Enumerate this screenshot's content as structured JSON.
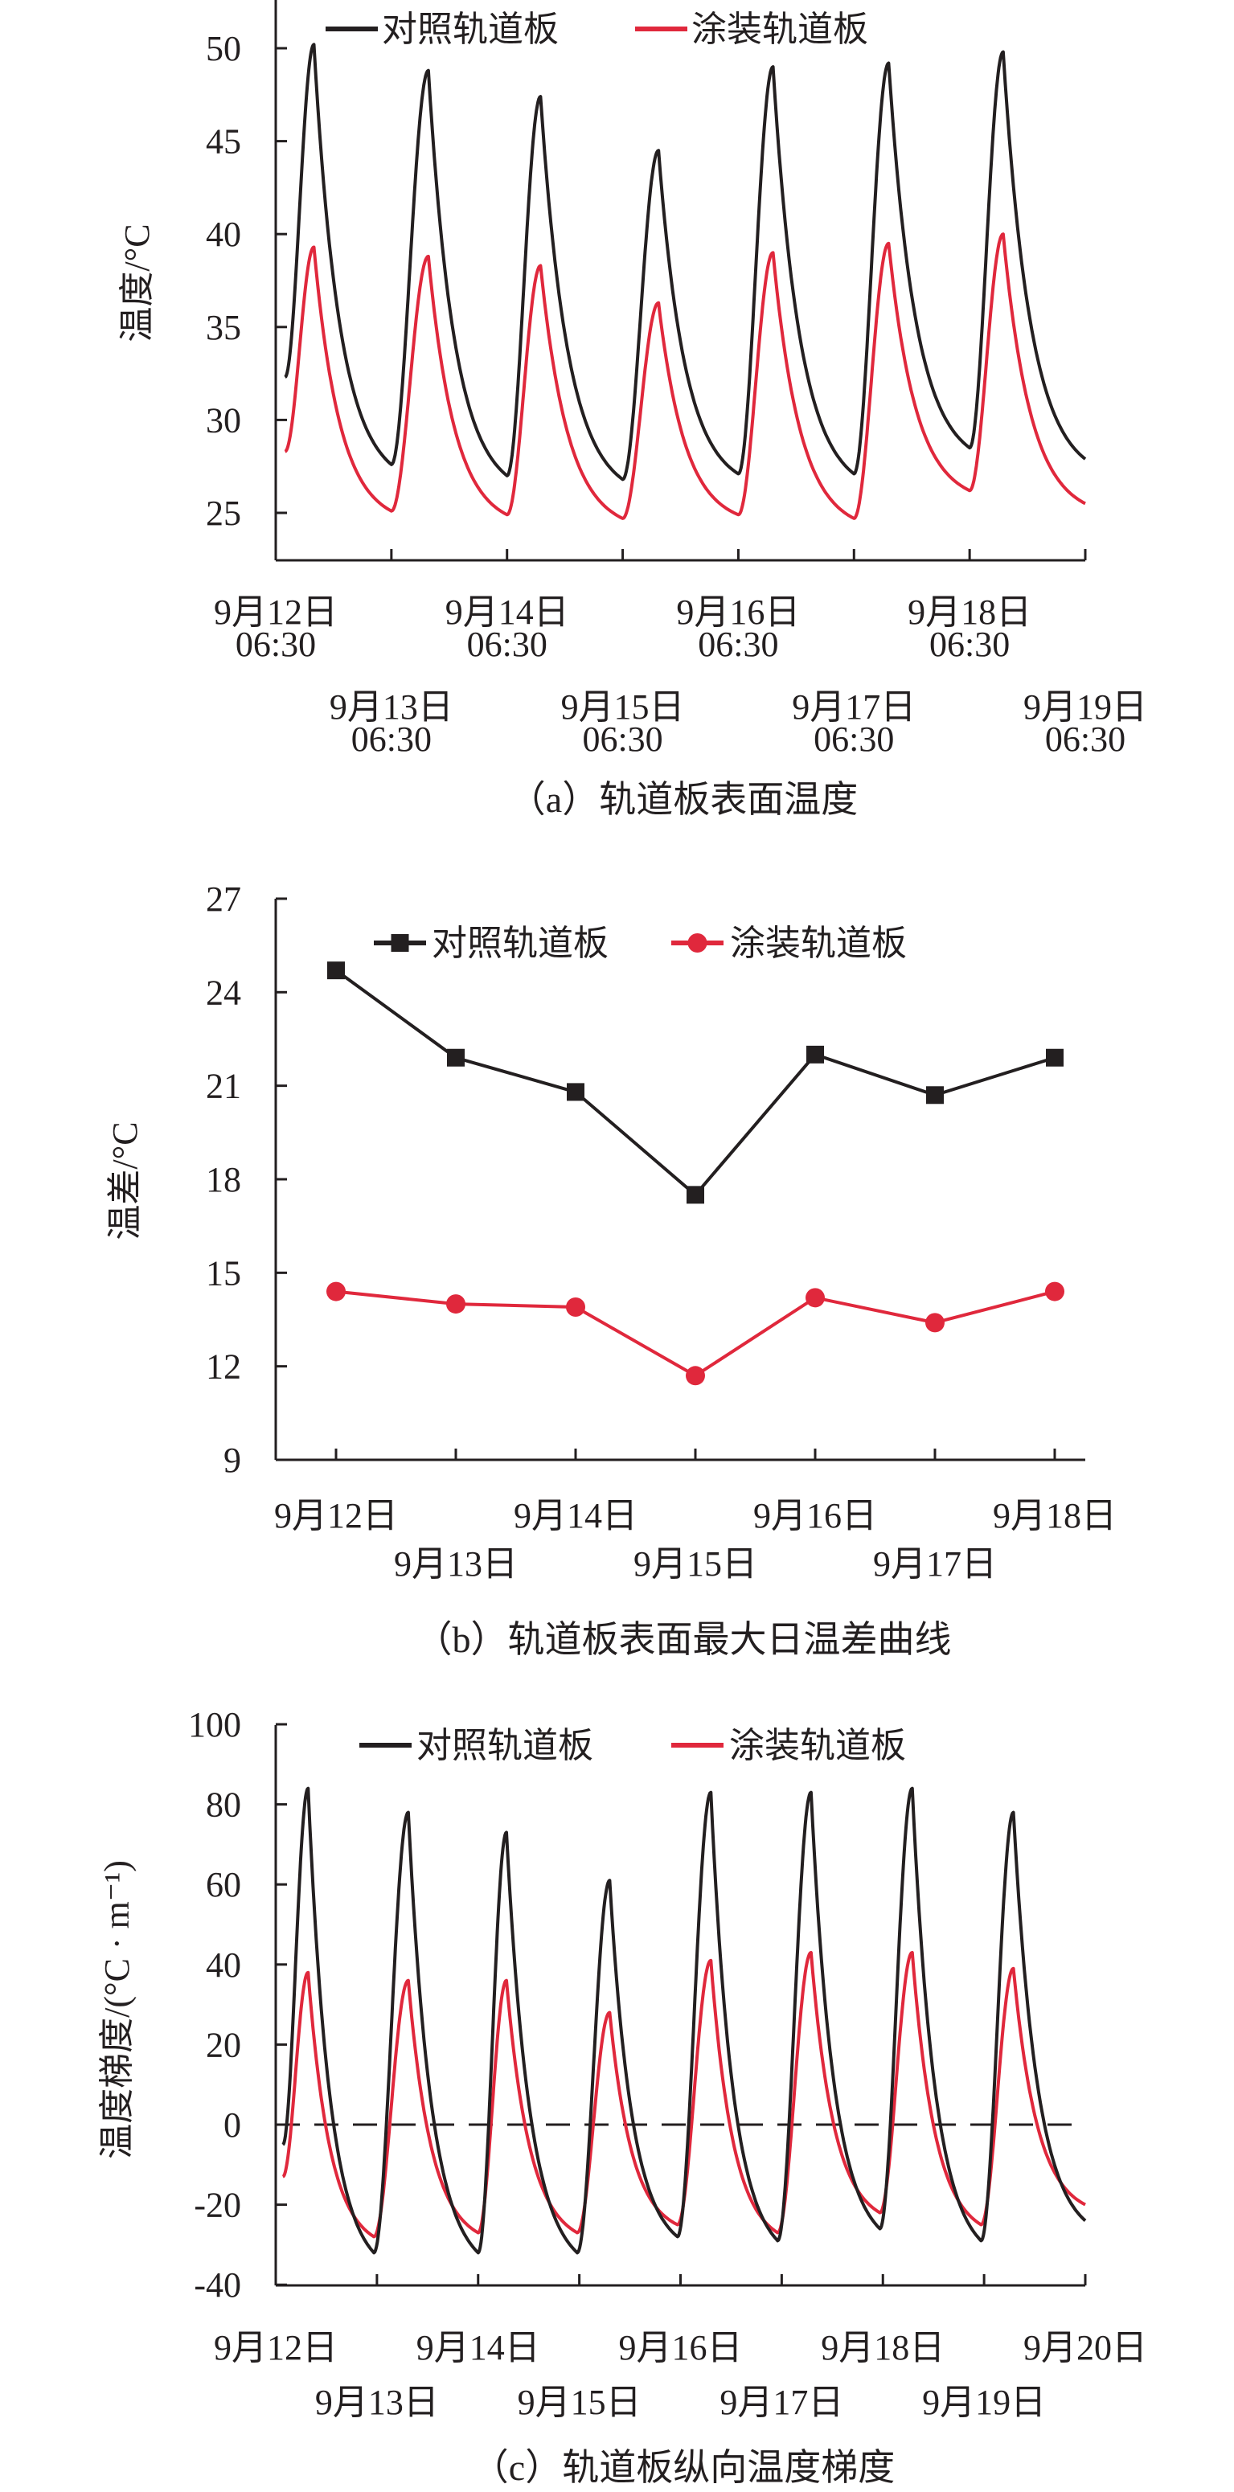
{
  "colors": {
    "control": "#231f20",
    "coated": "#e0283c"
  },
  "legend": {
    "control": "对照轨道板",
    "coated": "涂装轨道板"
  },
  "chart_data": [
    {
      "id": "a",
      "type": "line",
      "title": "（a）轨道板表面温度",
      "xlabel": "",
      "ylabel": "温度/°C",
      "x_unit": "days since 9月12日 06:30",
      "xlim": [
        0,
        7
      ],
      "ylim": [
        22.5,
        52
      ],
      "yticks": [
        25,
        30,
        35,
        40,
        45,
        50
      ],
      "xticks": [
        {
          "date": "9月12日",
          "time": "06:30"
        },
        {
          "date": "9月13日",
          "time": "06:30"
        },
        {
          "date": "9月14日",
          "time": "06:30"
        },
        {
          "date": "9月15日",
          "time": "06:30"
        },
        {
          "date": "9月16日",
          "time": "06:30"
        },
        {
          "date": "9月17日",
          "time": "06:30"
        },
        {
          "date": "9月18日",
          "time": "06:30"
        },
        {
          "date": "9月19日",
          "time": "06:30"
        }
      ],
      "legend_position": "top",
      "series": [
        {
          "name": "对照轨道板",
          "key": "control",
          "points": [
            [
              0.08,
              32.3
            ],
            [
              0.33,
              50.2
            ],
            [
              1.0,
              27.6
            ],
            [
              1.32,
              48.8
            ],
            [
              2.0,
              27.0
            ],
            [
              2.29,
              47.4
            ],
            [
              3.0,
              26.8
            ],
            [
              3.31,
              44.5
            ],
            [
              4.0,
              27.1
            ],
            [
              4.3,
              49.0
            ],
            [
              5.0,
              27.1
            ],
            [
              5.3,
              49.2
            ],
            [
              6.0,
              28.5
            ],
            [
              6.29,
              49.8
            ],
            [
              7.0,
              27.9
            ]
          ]
        },
        {
          "name": "涂装轨道板",
          "key": "coated",
          "points": [
            [
              0.08,
              28.3
            ],
            [
              0.33,
              39.3
            ],
            [
              1.0,
              25.1
            ],
            [
              1.32,
              38.8
            ],
            [
              2.0,
              24.9
            ],
            [
              2.29,
              38.3
            ],
            [
              3.0,
              24.7
            ],
            [
              3.31,
              36.3
            ],
            [
              4.0,
              24.9
            ],
            [
              4.3,
              39.0
            ],
            [
              5.0,
              24.7
            ],
            [
              5.3,
              39.5
            ],
            [
              6.0,
              26.2
            ],
            [
              6.29,
              40.0
            ],
            [
              7.0,
              25.5
            ]
          ]
        }
      ]
    },
    {
      "id": "b",
      "type": "line",
      "title": "（b）轨道板表面最大日温差曲线",
      "xlabel": "",
      "ylabel": "温差/°C",
      "ylim": [
        9,
        27
      ],
      "yticks": [
        9,
        12,
        15,
        18,
        21,
        24,
        27
      ],
      "categories": [
        "9月12日",
        "9月13日",
        "9月14日",
        "9月15日",
        "9月16日",
        "9月17日",
        "9月18日"
      ],
      "legend_position": "top",
      "series": [
        {
          "name": "对照轨道板",
          "key": "control",
          "marker": "square",
          "values": [
            24.7,
            21.9,
            20.8,
            17.5,
            22.0,
            20.7,
            21.9
          ]
        },
        {
          "name": "涂装轨道板",
          "key": "coated",
          "marker": "circle",
          "values": [
            14.4,
            14.0,
            13.9,
            11.7,
            14.2,
            13.4,
            14.4
          ]
        }
      ]
    },
    {
      "id": "c",
      "type": "line",
      "title": "（c）轨道板纵向温度梯度",
      "xlabel": "",
      "ylabel": "温度梯度/(°C · m⁻¹)",
      "x_unit": "days since 9月12日",
      "xlim": [
        0,
        8
      ],
      "ylim": [
        -40,
        100
      ],
      "yticks": [
        -40,
        -20,
        0,
        20,
        40,
        60,
        80,
        100
      ],
      "xticks": [
        "9月12日",
        "9月13日",
        "9月14日",
        "9月15日",
        "9月16日",
        "9月17日",
        "9月18日",
        "9月19日",
        "9月20日"
      ],
      "reference_line": 0,
      "legend_position": "top",
      "series": [
        {
          "name": "对照轨道板",
          "key": "control",
          "points": [
            [
              0.07,
              -5
            ],
            [
              0.32,
              84
            ],
            [
              0.97,
              -32
            ],
            [
              1.31,
              78
            ],
            [
              2.0,
              -32
            ],
            [
              2.28,
              73
            ],
            [
              2.98,
              -32
            ],
            [
              3.3,
              61
            ],
            [
              3.97,
              -28
            ],
            [
              4.3,
              83
            ],
            [
              4.96,
              -29
            ],
            [
              5.29,
              83
            ],
            [
              5.97,
              -26
            ],
            [
              6.29,
              84
            ],
            [
              6.97,
              -29
            ],
            [
              7.29,
              78
            ],
            [
              8.0,
              -24
            ]
          ]
        },
        {
          "name": "涂装轨道板",
          "key": "coated",
          "points": [
            [
              0.07,
              -13
            ],
            [
              0.32,
              38
            ],
            [
              0.97,
              -28
            ],
            [
              1.31,
              36
            ],
            [
              2.0,
              -27
            ],
            [
              2.28,
              36
            ],
            [
              2.98,
              -27
            ],
            [
              3.3,
              28
            ],
            [
              3.97,
              -25
            ],
            [
              4.3,
              41
            ],
            [
              4.96,
              -27
            ],
            [
              5.29,
              43
            ],
            [
              5.97,
              -22
            ],
            [
              6.29,
              43
            ],
            [
              6.97,
              -25
            ],
            [
              7.29,
              39
            ],
            [
              8.0,
              -20
            ]
          ]
        }
      ]
    }
  ]
}
